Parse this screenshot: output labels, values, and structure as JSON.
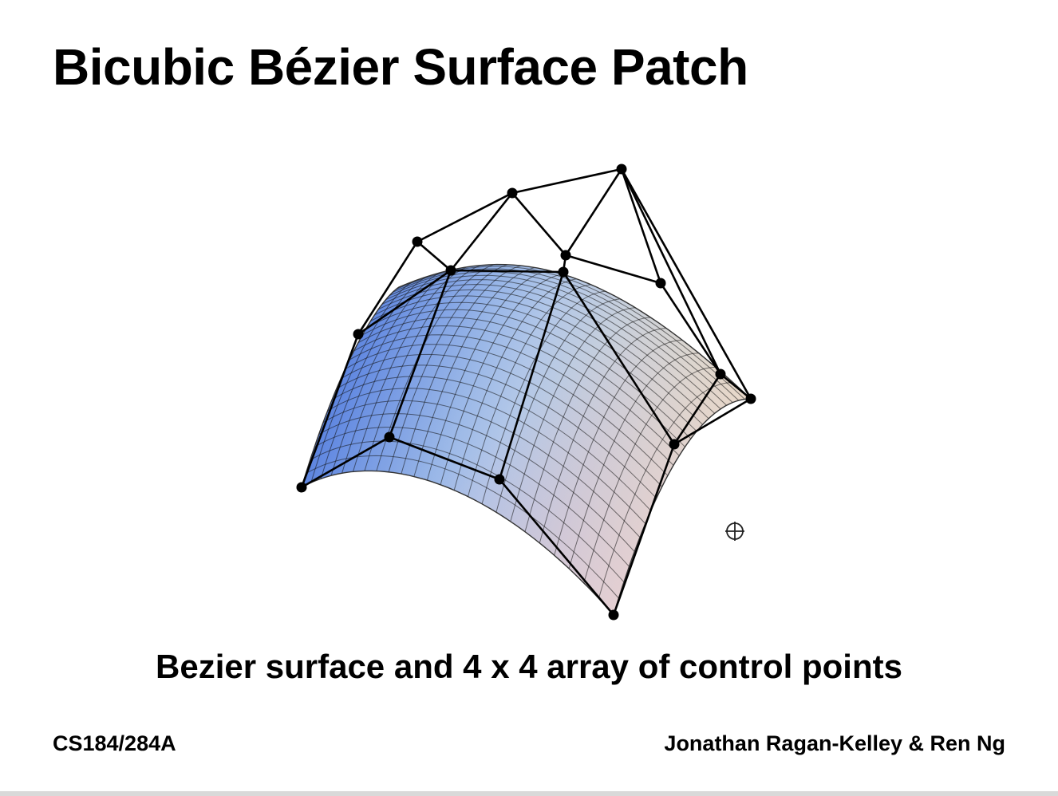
{
  "slide": {
    "title": "Bicubic Bézier Surface Patch",
    "caption": "Bezier surface and 4 x 4 array of control points",
    "footer_left": "CS184/284A",
    "footer_right": "Jonathan Ragan-Kelley & Ren Ng"
  },
  "figure": {
    "grid_size": "4 x 4",
    "surface_colors": [
      "#5b78de",
      "#a6c4ef",
      "#c8a4d4",
      "#efdcd8",
      "#f1f3c0"
    ],
    "control_net_color": "#000000",
    "icons": [
      "crosshair-icon"
    ]
  }
}
